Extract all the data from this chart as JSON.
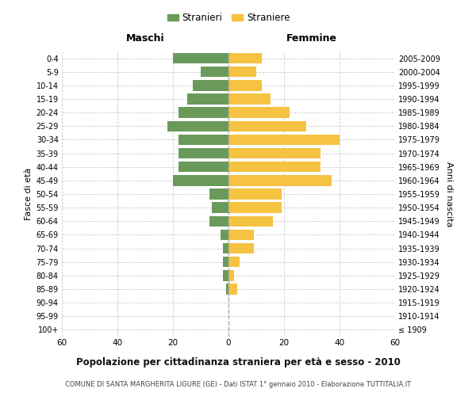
{
  "age_groups": [
    "100+",
    "95-99",
    "90-94",
    "85-89",
    "80-84",
    "75-79",
    "70-74",
    "65-69",
    "60-64",
    "55-59",
    "50-54",
    "45-49",
    "40-44",
    "35-39",
    "30-34",
    "25-29",
    "20-24",
    "15-19",
    "10-14",
    "5-9",
    "0-4"
  ],
  "birth_years": [
    "≤ 1909",
    "1910-1914",
    "1915-1919",
    "1920-1924",
    "1925-1929",
    "1930-1934",
    "1935-1939",
    "1940-1944",
    "1945-1949",
    "1950-1954",
    "1955-1959",
    "1960-1964",
    "1965-1969",
    "1970-1974",
    "1975-1979",
    "1980-1984",
    "1985-1989",
    "1990-1994",
    "1995-1999",
    "2000-2004",
    "2005-2009"
  ],
  "maschi": [
    0,
    0,
    0,
    1,
    2,
    2,
    2,
    3,
    7,
    6,
    7,
    20,
    18,
    18,
    18,
    22,
    18,
    15,
    13,
    10,
    20
  ],
  "femmine": [
    0,
    0,
    0,
    3,
    2,
    4,
    9,
    9,
    16,
    19,
    19,
    37,
    33,
    33,
    40,
    28,
    22,
    15,
    12,
    10,
    12
  ],
  "male_color": "#6a9a5a",
  "female_color": "#f5c242",
  "background_color": "#ffffff",
  "grid_color": "#cccccc",
  "title": "Popolazione per cittadinanza straniera per età e sesso - 2010",
  "subtitle": "COMUNE DI SANTA MARGHERITA LIGURE (GE) - Dati ISTAT 1° gennaio 2010 - Elaborazione TUTTITALIA.IT",
  "xlabel_left": "Maschi",
  "xlabel_right": "Femmine",
  "ylabel_left": "Fasce di età",
  "ylabel_right": "Anni di nascita",
  "legend_male": "Stranieri",
  "legend_female": "Straniere",
  "xlim": 60
}
